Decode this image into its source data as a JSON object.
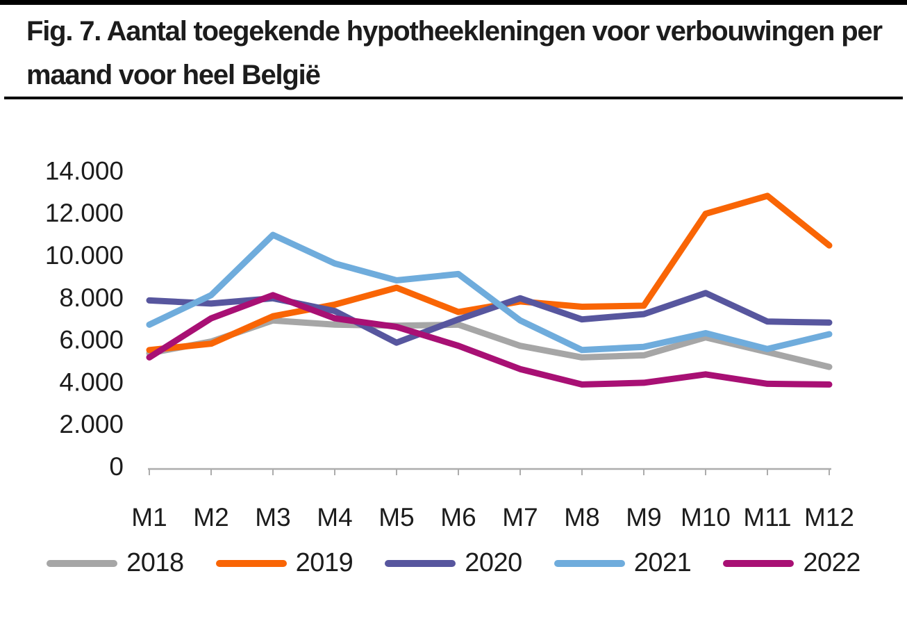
{
  "page": {
    "title_lines": [
      "Fig. 7. Aantal toegekende hypotheekleningen voor verbouwingen per",
      "maand voor heel België"
    ]
  },
  "chart_data": {
    "type": "line",
    "title": "Fig. 7. Aantal toegekende hypotheekleningen voor verbouwingen per maand voor heel België",
    "categories": [
      "M1",
      "M2",
      "M3",
      "M4",
      "M5",
      "M6",
      "M7",
      "M8",
      "M9",
      "M10",
      "M11",
      "M12"
    ],
    "series": [
      {
        "name": "2018",
        "color": "#A6A6A6",
        "values": [
          5350,
          5900,
          6900,
          6700,
          6650,
          6700,
          5700,
          5150,
          5250,
          6100,
          5400,
          4700
        ]
      },
      {
        "name": "2019",
        "color": "#F96505",
        "values": [
          5500,
          5800,
          7100,
          7650,
          8450,
          7300,
          7800,
          7550,
          7600,
          11950,
          12800,
          10450
        ]
      },
      {
        "name": "2020",
        "color": "#57569E",
        "values": [
          7850,
          7700,
          7950,
          7350,
          5850,
          6950,
          7950,
          6950,
          7200,
          8200,
          6850,
          6800
        ]
      },
      {
        "name": "2021",
        "color": "#6FACDC",
        "values": [
          6700,
          8100,
          10950,
          9600,
          8800,
          9100,
          6900,
          5500,
          5650,
          6300,
          5550,
          6250
        ]
      },
      {
        "name": "2022",
        "color": "#A81074",
        "values": [
          5150,
          7000,
          8100,
          7000,
          6600,
          5700,
          4600,
          3870,
          3950,
          4350,
          3900,
          3870
        ]
      }
    ],
    "xlabel": "",
    "ylabel": "",
    "ylim": [
      0,
      14000
    ],
    "ytick_step": 2000,
    "ytick_labels": [
      "0",
      "2.000",
      "4.000",
      "6.000",
      "8.000",
      "10.000",
      "12.000",
      "14.000"
    ],
    "grid": false,
    "legend_position": "bottom",
    "axis_color": "#ACACAC",
    "text_color": "#1C1C1C",
    "line_width": 9
  }
}
